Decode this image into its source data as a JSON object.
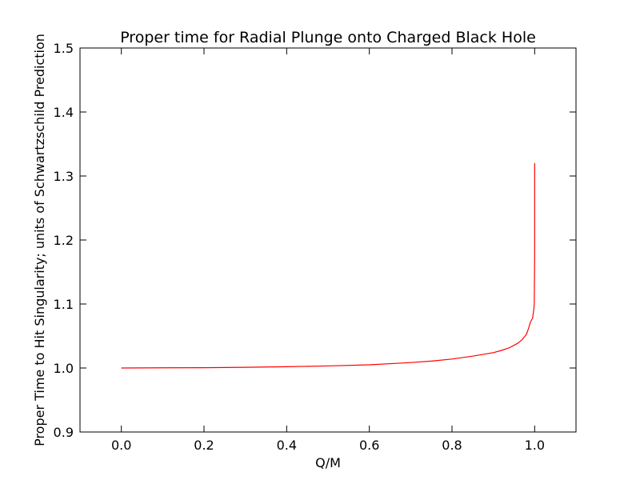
{
  "chart_data": {
    "type": "line",
    "title": "Proper time for Radial Plunge onto Charged Black Hole",
    "xlabel": "Q/M",
    "ylabel": "Proper Time to Hit Singularity; units of Schwartzschild Prediction",
    "xlim": [
      -0.1,
      1.1
    ],
    "ylim": [
      0.9,
      1.5
    ],
    "xticks": [
      0.0,
      0.2,
      0.4,
      0.6,
      0.8,
      1.0
    ],
    "xtick_labels": [
      "0.0",
      "0.2",
      "0.4",
      "0.6",
      "0.8",
      "1.0"
    ],
    "yticks": [
      0.9,
      1.0,
      1.1,
      1.2,
      1.3,
      1.4,
      1.5
    ],
    "ytick_labels": [
      "0.9",
      "1.0",
      "1.1",
      "1.2",
      "1.3",
      "1.4",
      "1.5"
    ],
    "grid": false,
    "legend": "none",
    "series": [
      {
        "color": "#ff0000",
        "x": [
          0.0,
          0.1,
          0.2,
          0.3,
          0.4,
          0.5,
          0.6,
          0.7,
          0.75,
          0.8,
          0.85,
          0.9,
          0.92,
          0.94,
          0.96,
          0.97,
          0.98,
          0.985,
          0.99,
          0.995,
          0.998,
          0.999,
          1.0,
          1.0
        ],
        "y": [
          1.0,
          1.0003,
          1.0005,
          1.0011,
          1.002,
          1.0032,
          1.005,
          1.0085,
          1.0108,
          1.014,
          1.0185,
          1.024,
          1.0275,
          1.032,
          1.039,
          1.0445,
          1.0525,
          1.0615,
          1.072,
          1.078,
          1.092,
          1.1,
          1.18,
          1.32
        ]
      }
    ]
  }
}
